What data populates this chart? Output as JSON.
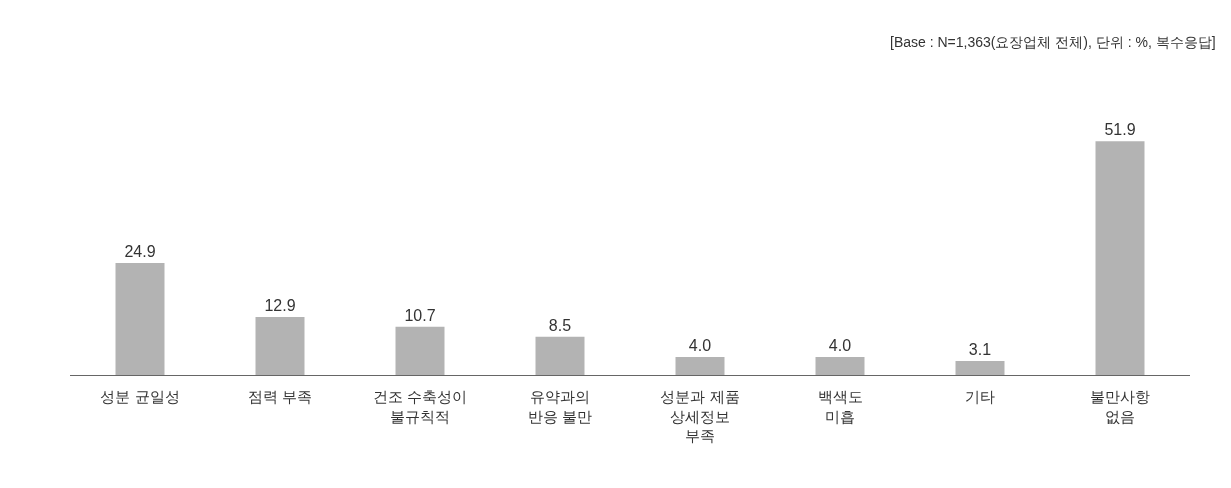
{
  "chart_data": {
    "type": "bar",
    "categories": [
      "성분 균일성",
      "점력 부족",
      "건조 수축성이\n불규칙적",
      "유약과의\n반응 불만",
      "성분과 제품\n상세정보\n부족",
      "백색도\n미흡",
      "기타",
      "불만사항\n없음"
    ],
    "values": [
      24.9,
      12.9,
      10.7,
      8.5,
      4.0,
      4.0,
      3.1,
      51.9
    ],
    "value_labels": [
      "24.9",
      "12.9",
      "10.7",
      "8.5",
      "4.0",
      "4.0",
      "3.1",
      "51.9"
    ],
    "color": "#b3b3b3",
    "tick_labels": "x",
    "annotations": [
      "[Base : N=1,363(요장업체 전체), 단위 : %, 복수응답]"
    ]
  }
}
